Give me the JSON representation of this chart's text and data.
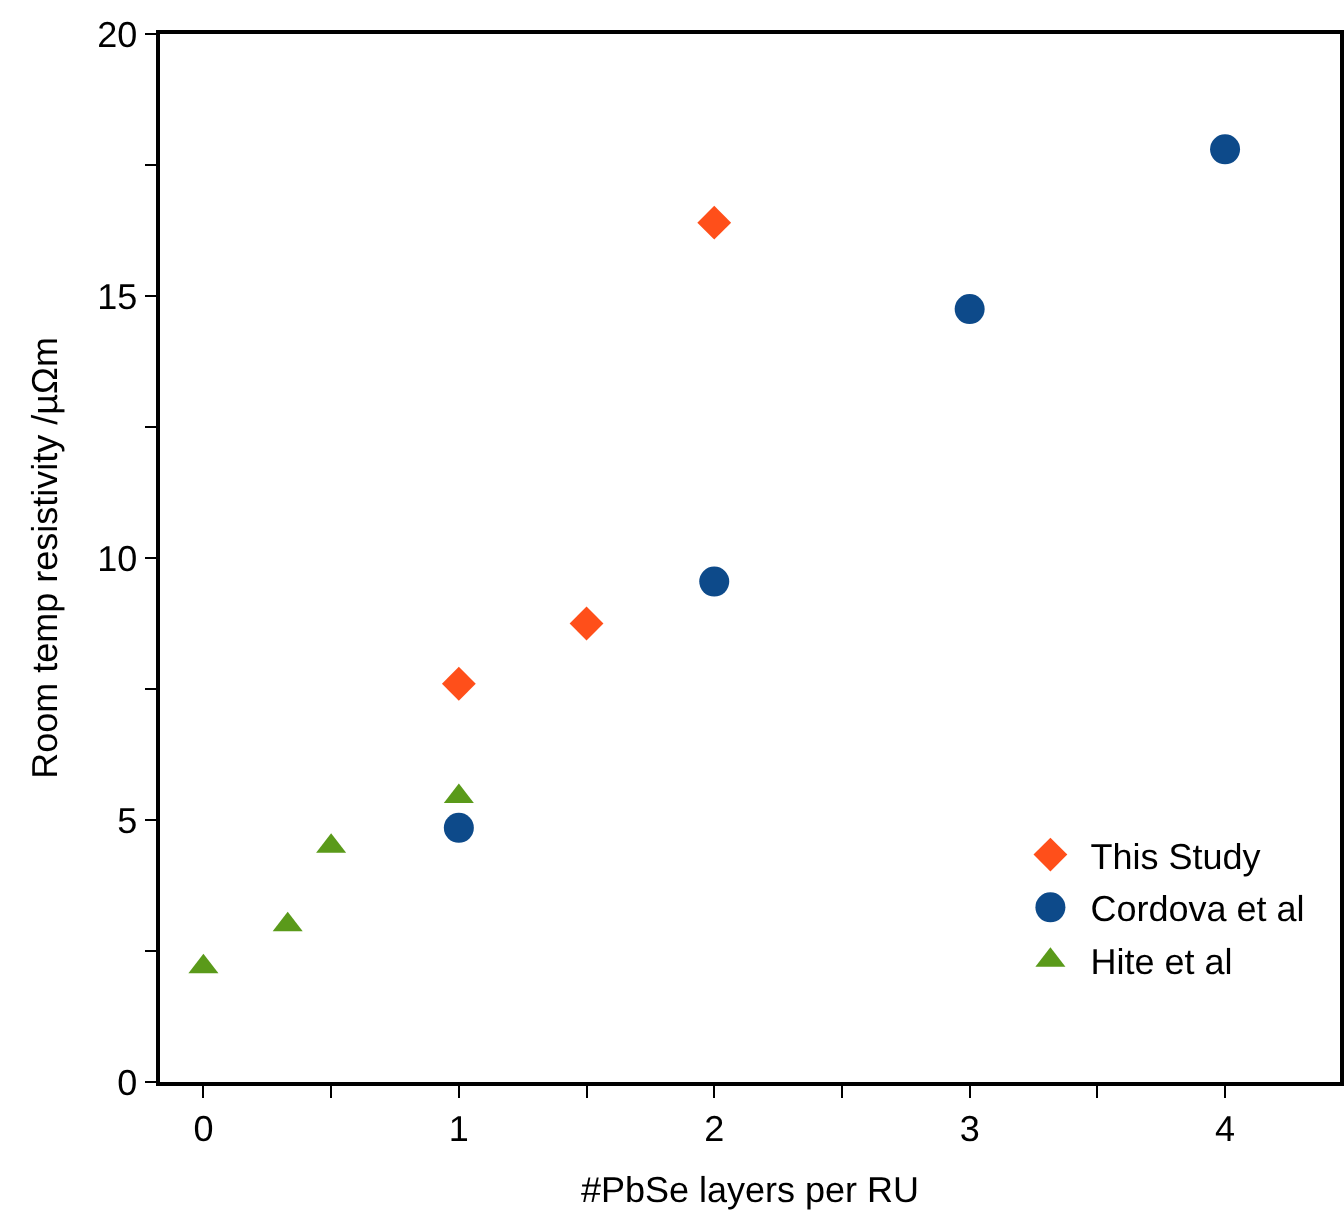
{
  "chart_data": {
    "type": "scatter",
    "xlabel": "#PbSe layers per RU",
    "ylabel": "Room temp resistivity /µΩm",
    "xlim": [
      -0.17,
      4.45
    ],
    "ylim": [
      0,
      20
    ],
    "xticks": [
      0,
      {
        "value": 0.5,
        "label": null
      },
      1,
      {
        "value": 1.5,
        "label": null
      },
      2,
      {
        "value": 2.5,
        "label": null
      },
      3,
      {
        "value": 3.5,
        "label": null
      },
      4
    ],
    "yticks": [
      0,
      {
        "value": 2.5,
        "label": null
      },
      5,
      {
        "value": 7.5,
        "label": null
      },
      10,
      {
        "value": 12.5,
        "label": null
      },
      15,
      {
        "value": 17.5,
        "label": null
      },
      20
    ],
    "legend": "bottom right",
    "series": [
      {
        "name": "This Study",
        "color": "#ff4f1a",
        "marker": "diamond",
        "x": [
          1,
          1.5,
          2
        ],
        "values": [
          7.6,
          8.75,
          16.4
        ]
      },
      {
        "name": "Cordova et al",
        "color": "#0d4a8a",
        "marker": "circle",
        "x": [
          1,
          2,
          3,
          4
        ],
        "values": [
          4.85,
          9.55,
          14.75,
          17.8
        ]
      },
      {
        "name": "Hite et al",
        "color": "#5a9a1a",
        "marker": "triangle",
        "x": [
          0,
          0.33,
          0.5,
          1
        ],
        "values": [
          2.2,
          3.0,
          4.5,
          5.45
        ]
      }
    ]
  }
}
